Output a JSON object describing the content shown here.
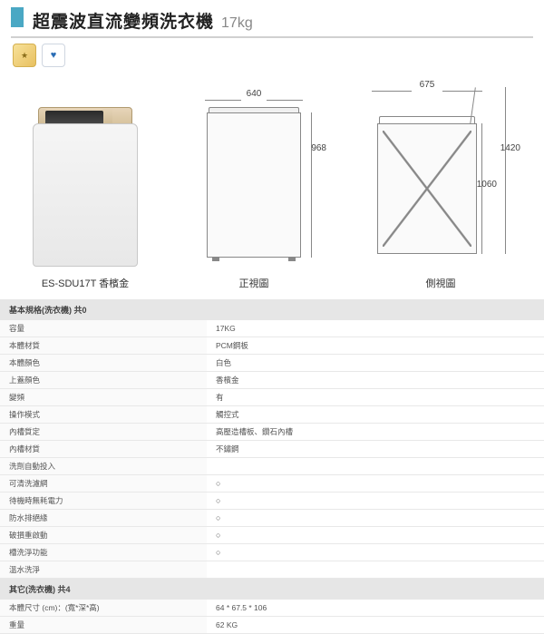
{
  "header": {
    "title": "超震波直流變頻洗衣機",
    "capacity": "17kg",
    "accent_color": "#4aa8c4"
  },
  "product": {
    "model": "ES-SDU17T",
    "color_name": "香檳金",
    "photo_label": "ES-SDU17T  香檳金"
  },
  "diagrams": {
    "front": {
      "label": "正視圖",
      "width_mm": "640",
      "height_mm": "968"
    },
    "side": {
      "label": "側視圖",
      "depth_mm": "675",
      "open_height_mm": "1420",
      "body_height_mm": "1060"
    }
  },
  "spec_sections": [
    {
      "header": "基本規格(洗衣機) 共0",
      "rows": [
        {
          "label": "容量",
          "value": "17KG"
        },
        {
          "label": "本體材質",
          "value": "PCM鋼板"
        },
        {
          "label": "本體顏色",
          "value": "白色"
        },
        {
          "label": "上蓋顏色",
          "value": "香檳金"
        },
        {
          "label": "變頻",
          "value": "有"
        },
        {
          "label": "操作模式",
          "value": "觸控式"
        },
        {
          "label": "內槽質定",
          "value": "高壓造槽板、鑽石內槽"
        },
        {
          "label": "內槽材質",
          "value": "不鏽鋼"
        },
        {
          "label": "洗劑自動投入",
          "value": ""
        },
        {
          "label": "可清洗濾網",
          "value": "○"
        },
        {
          "label": "待機時無耗電力",
          "value": "○"
        },
        {
          "label": "防水排絕緣",
          "value": "○"
        },
        {
          "label": "破損重啟動",
          "value": "○"
        },
        {
          "label": "槽洗淨功能",
          "value": "○"
        },
        {
          "label": "溫水洗淨",
          "value": ""
        }
      ]
    },
    {
      "header": "其它(洗衣機) 共4",
      "rows": [
        {
          "label": "本體尺寸 (cm)：(寬*深*高)",
          "value": "64 * 67.5 * 106"
        },
        {
          "label": "重量",
          "value": "62 KG"
        }
      ]
    }
  ],
  "styling": {
    "title_fontsize": 19,
    "label_fontsize": 11,
    "table_fontsize": 8.5,
    "line_color": "#888888",
    "header_bg": "#e6e6e6",
    "row_border": "#e8e8e8"
  }
}
